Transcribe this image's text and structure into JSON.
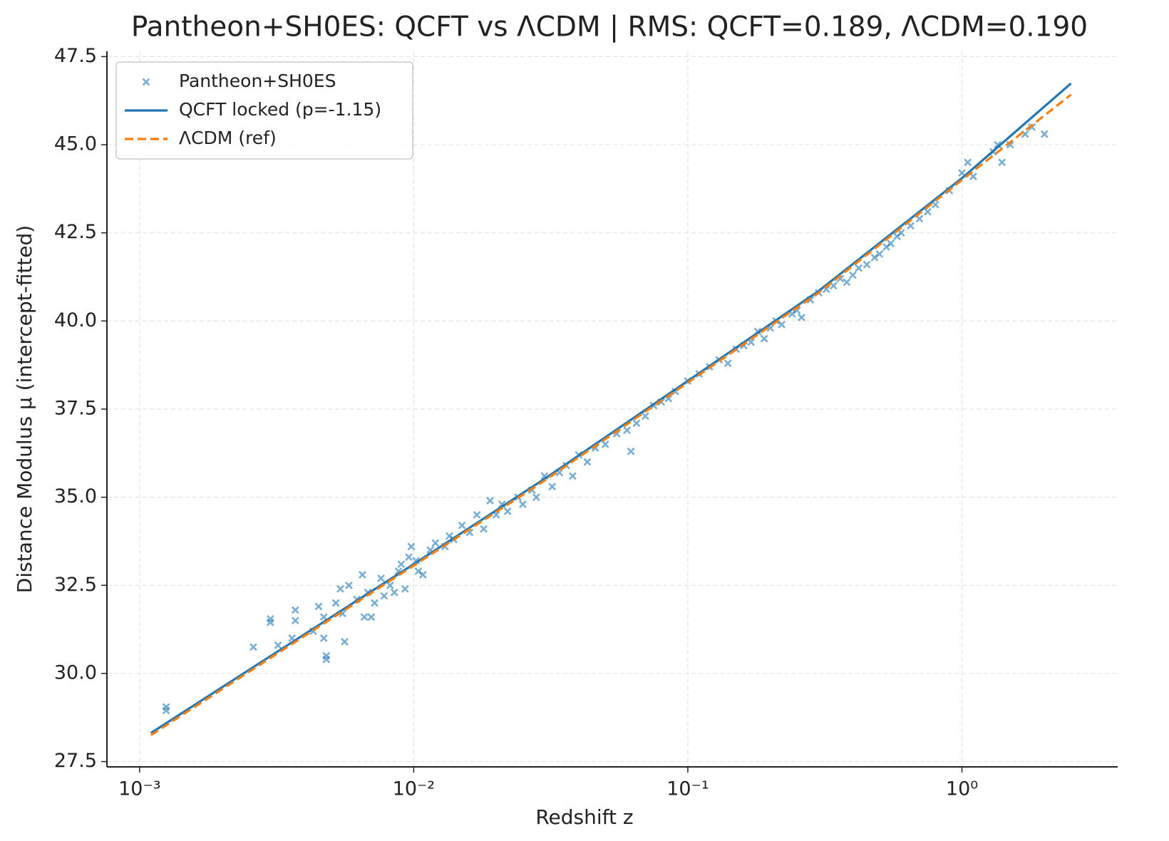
{
  "chart_data": {
    "type": "scatter",
    "title": "Pantheon+SH0ES: QCFT vs ΛCDM | RMS: QCFT=0.189, ΛCDM=0.190",
    "x_label": "Redshift z",
    "y_label": "Distance Modulus μ (intercept-fitted)",
    "xscale": "log",
    "xlim": [
      0.00076,
      3.7
    ],
    "ylim": [
      27.35,
      47.65
    ],
    "xticks": [
      {
        "value": 0.001,
        "label": "10⁻³"
      },
      {
        "value": 0.01,
        "label": "10⁻²"
      },
      {
        "value": 0.1,
        "label": "10⁻¹"
      },
      {
        "value": 1,
        "label": "10⁰"
      }
    ],
    "yticks": [
      27.5,
      {
        "value": 30,
        "label": "30.0"
      },
      32.5,
      {
        "value": 35,
        "label": "35.0"
      },
      37.5,
      {
        "value": 40,
        "label": "40.0"
      },
      42.5,
      {
        "value": 45,
        "label": "45.0"
      },
      47.5
    ],
    "grid": true,
    "legend": "upper left",
    "series": [
      {
        "name": "Pantheon+SH0ES",
        "mode": "markers",
        "color": "#1f77b4",
        "x": [
          0.00125,
          0.00125,
          0.0026,
          0.003,
          0.003,
          0.0032,
          0.0037,
          0.0037,
          0.0036,
          0.0043,
          0.0045,
          0.0047,
          0.0048,
          0.0048,
          0.0047,
          0.0052,
          0.0054,
          0.0055,
          0.0056,
          0.0058,
          0.0062,
          0.0065,
          0.0066,
          0.0068,
          0.007,
          0.0072,
          0.0076,
          0.0078,
          0.0082,
          0.0085,
          0.0088,
          0.009,
          0.0093,
          0.0096,
          0.0098,
          0.0102,
          0.0104,
          0.0108,
          0.0115,
          0.012,
          0.013,
          0.0135,
          0.014,
          0.015,
          0.016,
          0.017,
          0.018,
          0.019,
          0.02,
          0.021,
          0.022,
          0.024,
          0.025,
          0.027,
          0.028,
          0.03,
          0.032,
          0.034,
          0.036,
          0.038,
          0.04,
          0.043,
          0.046,
          0.05,
          0.055,
          0.06,
          0.062,
          0.065,
          0.07,
          0.075,
          0.08,
          0.085,
          0.09,
          0.1,
          0.11,
          0.12,
          0.13,
          0.14,
          0.15,
          0.16,
          0.17,
          0.18,
          0.19,
          0.2,
          0.21,
          0.22,
          0.24,
          0.25,
          0.26,
          0.28,
          0.3,
          0.32,
          0.34,
          0.36,
          0.38,
          0.4,
          0.42,
          0.45,
          0.48,
          0.5,
          0.53,
          0.55,
          0.58,
          0.6,
          0.65,
          0.7,
          0.75,
          0.8,
          0.9,
          1.0,
          1.05,
          1.1,
          1.3,
          1.35,
          1.4,
          1.5,
          1.7,
          1.8,
          2.0
        ],
        "values": [
          29.05,
          28.95,
          30.75,
          31.55,
          31.45,
          30.8,
          31.8,
          31.5,
          31.0,
          31.2,
          31.9,
          31.6,
          30.5,
          30.4,
          31.0,
          32.0,
          32.4,
          31.7,
          30.9,
          32.5,
          32.1,
          32.8,
          31.6,
          32.3,
          31.6,
          32.0,
          32.7,
          32.2,
          32.5,
          32.3,
          32.9,
          33.1,
          32.4,
          33.3,
          33.6,
          33.2,
          32.9,
          32.8,
          33.5,
          33.7,
          33.6,
          33.9,
          33.8,
          34.2,
          34.0,
          34.5,
          34.1,
          34.9,
          34.5,
          34.8,
          34.6,
          35.0,
          34.8,
          35.2,
          35.0,
          35.6,
          35.3,
          35.7,
          35.9,
          35.6,
          36.2,
          36.0,
          36.4,
          36.5,
          36.8,
          36.9,
          36.3,
          37.1,
          37.3,
          37.6,
          37.7,
          37.8,
          38.0,
          38.3,
          38.5,
          38.7,
          38.9,
          38.8,
          39.2,
          39.3,
          39.4,
          39.7,
          39.5,
          39.8,
          40.0,
          39.9,
          40.2,
          40.3,
          40.1,
          40.6,
          40.8,
          40.9,
          41.0,
          41.2,
          41.1,
          41.3,
          41.5,
          41.6,
          41.8,
          41.9,
          42.1,
          42.2,
          42.4,
          42.5,
          42.7,
          42.9,
          43.1,
          43.3,
          43.7,
          44.2,
          44.5,
          44.1,
          44.8,
          45.0,
          44.5,
          45.0,
          45.3,
          45.5,
          45.3
        ]
      },
      {
        "name": "QCFT locked (p=-1.15)",
        "mode": "lines",
        "dash": "solid",
        "color": "#1f77b4",
        "x": [
          0.0011,
          0.003,
          0.01,
          0.03,
          0.1,
          0.3,
          1,
          2.5
        ],
        "values": [
          28.31,
          30.49,
          33.1,
          35.52,
          38.3,
          40.85,
          44.05,
          46.74
        ]
      },
      {
        "name": "ΛCDM (ref)",
        "mode": "lines",
        "dash": "dashed",
        "color": "#ff7f0e",
        "x": [
          0.0011,
          0.003,
          0.01,
          0.03,
          0.1,
          0.3,
          1,
          2.5
        ],
        "values": [
          28.25,
          30.44,
          33.06,
          35.47,
          38.25,
          40.8,
          44.0,
          46.42
        ]
      }
    ]
  }
}
